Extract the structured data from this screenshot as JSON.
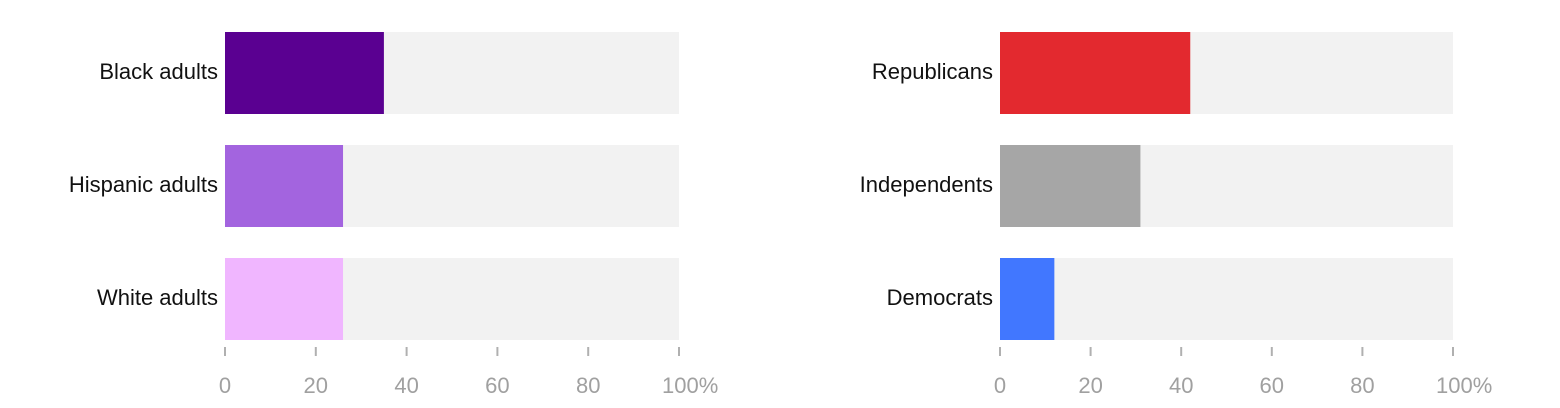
{
  "chart_data": [
    {
      "type": "bar",
      "orientation": "horizontal",
      "categories": [
        "Black adults",
        "Hispanic adults",
        "White adults"
      ],
      "values": [
        35,
        26,
        26
      ],
      "colors": [
        "#5a0091",
        "#a364df",
        "#f0b6ff"
      ],
      "track_color": "#f2f2f2",
      "xlim": [
        0,
        100
      ],
      "xticks": [
        0,
        20,
        40,
        60,
        80,
        {
          "value": 100,
          "label": "100%"
        }
      ]
    },
    {
      "type": "bar",
      "orientation": "horizontal",
      "categories": [
        "Republicans",
        "Independents",
        "Democrats"
      ],
      "values": [
        42,
        31,
        12
      ],
      "colors": [
        "#e3292f",
        "#a6a6a6",
        "#4177ff"
      ],
      "track_color": "#f2f2f2",
      "xlim": [
        0,
        100
      ],
      "xticks": [
        0,
        20,
        40,
        60,
        80,
        {
          "value": 100,
          "label": "100%"
        }
      ]
    }
  ]
}
